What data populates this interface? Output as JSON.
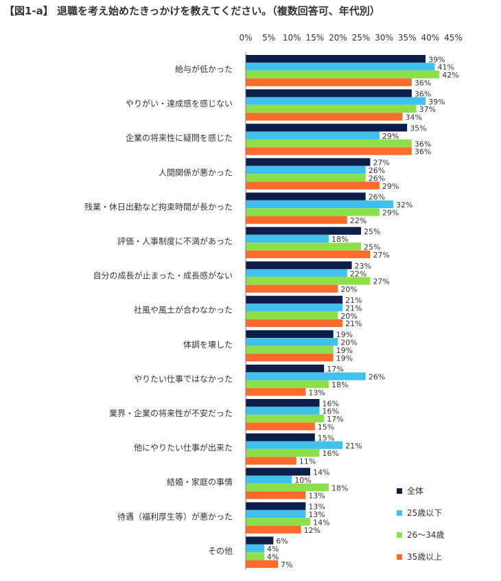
{
  "title": "【図1-a】 退職を考え始めたきっかけを教えてください。（複数回答可、年代別）",
  "colors": {
    "s0": "#0d1e4a",
    "s1": "#3fc1ec",
    "s2": "#8de04a",
    "s3": "#ff6b2b"
  },
  "chart_data": {
    "type": "bar",
    "orientation": "horizontal",
    "title": "【図1-a】 退職を考え始めたきっかけを教えてください。（複数回答可、年代別）",
    "xlim": [
      0,
      45
    ],
    "ticks": [
      "0%",
      "5%",
      "10%",
      "15%",
      "20%",
      "25%",
      "30%",
      "35%",
      "40%",
      "45%"
    ],
    "grid": false,
    "legend_position": "bottom-right",
    "categories": [
      "給与が低かった",
      "やりがい・達成感を感じない",
      "企業の将来性に疑問を感じた",
      "人間関係が悪かった",
      "残業・休日出勤など拘束時間が長かった",
      "評価・人事制度に不満があった",
      "自分の成長が止まった・成長感がない",
      "社風や風土が合わなかった",
      "体調を壊した",
      "やりたい仕事ではなかった",
      "業界・企業の将来性が不安だった",
      "他にやりたい仕事が出来た",
      "結婚・家庭の事情",
      "待遇（福利厚生等）が悪かった",
      "その他"
    ],
    "series": [
      {
        "name": "全体",
        "values": [
          39,
          36,
          35,
          27,
          26,
          25,
          23,
          21,
          19,
          17,
          16,
          15,
          14,
          13,
          6
        ]
      },
      {
        "name": "25歳以下",
        "values": [
          41,
          39,
          29,
          26,
          32,
          18,
          22,
          21,
          20,
          26,
          16,
          21,
          10,
          13,
          4
        ]
      },
      {
        "name": "26～34歳",
        "values": [
          42,
          37,
          36,
          26,
          29,
          25,
          27,
          20,
          19,
          18,
          17,
          16,
          18,
          14,
          4
        ]
      },
      {
        "name": "35歳以上",
        "values": [
          36,
          34,
          36,
          29,
          22,
          27,
          20,
          21,
          19,
          13,
          15,
          11,
          13,
          12,
          7
        ]
      }
    ]
  }
}
